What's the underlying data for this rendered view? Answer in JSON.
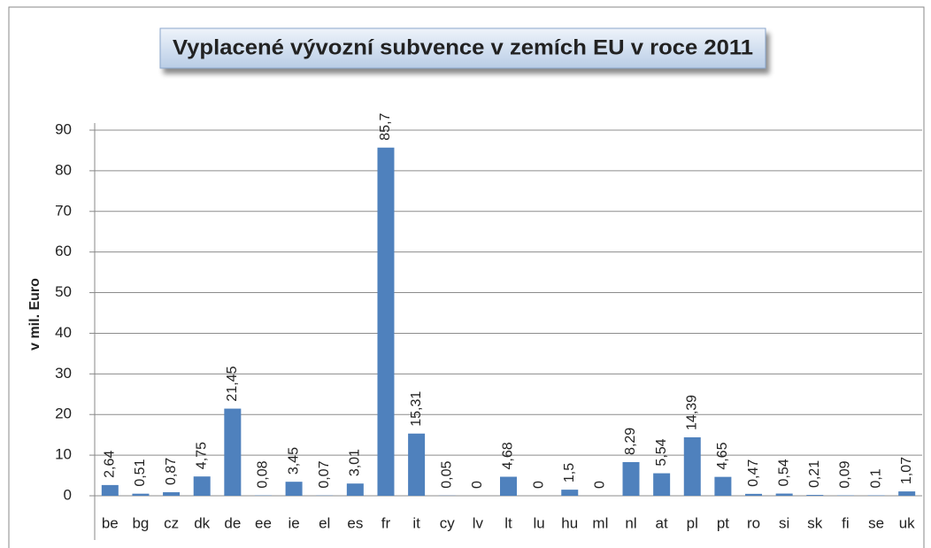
{
  "chart_data": {
    "type": "bar",
    "title": "Vyplacené vývozní subvence v zemích EU v roce 2011",
    "y_label": "v mil. Euro",
    "categories": [
      "be",
      "bg",
      "cz",
      "dk",
      "de",
      "ee",
      "ie",
      "el",
      "es",
      "fr",
      "it",
      "cy",
      "lv",
      "lt",
      "lu",
      "hu",
      "ml",
      "nl",
      "at",
      "pl",
      "pt",
      "ro",
      "si",
      "sk",
      "fi",
      "se",
      "uk"
    ],
    "values": [
      2.64,
      0.51,
      0.87,
      4.75,
      21.45,
      0.08,
      3.45,
      0.07,
      3.01,
      85.7,
      15.31,
      0.05,
      0,
      4.68,
      0,
      1.5,
      0,
      8.29,
      5.54,
      14.39,
      4.65,
      0.47,
      0.54,
      0.21,
      0.09,
      0.1,
      1.07
    ],
    "value_labels": [
      "2,64",
      "0,51",
      "0,87",
      "4,75",
      "21,45",
      "0,08",
      "3,45",
      "0,07",
      "3,01",
      "85,7",
      "15,31",
      "0,05",
      "0",
      "4,68",
      "0",
      "1,5",
      "0",
      "8,29",
      "5,54",
      "14,39",
      "4,65",
      "0,47",
      "0,54",
      "0,21",
      "0,09",
      "0,1",
      "1,07"
    ],
    "color": "#4f81bd",
    "ylim": [
      0,
      90
    ],
    "yticks": [
      0,
      10,
      20,
      30,
      40,
      50,
      60,
      70,
      80,
      90
    ],
    "grid": true
  }
}
